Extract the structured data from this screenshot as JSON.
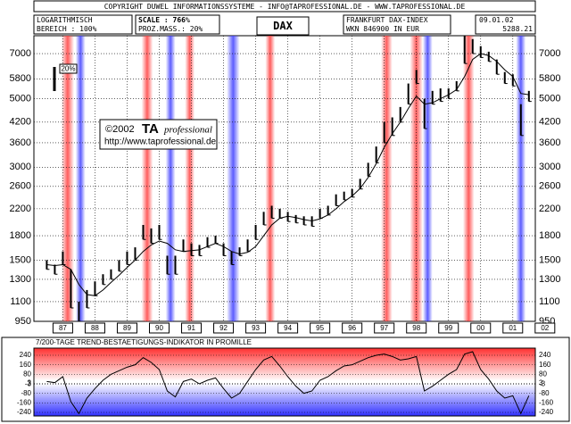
{
  "header": {
    "copyright": "COPYRIGHT DUWEL INFORMATIONSSYSTEME - INFO@TAPROFESSIONAL.DE - WWW.TAPROFESSIONAL.DE",
    "scale_type": "LOGARITHMISCH",
    "range": "BEREICH : 100%",
    "scale": "SCALE : 766%",
    "percent_measure": "PROZ.MASS.: 20%",
    "symbol": "DAX",
    "name": "FRANKFURT DAX-INDEX",
    "wkn": "WKN 846900 IN EUR",
    "date": "09.01.02",
    "last": "5288.21"
  },
  "chart_data": [
    {
      "type": "range-bar",
      "log_scale": true,
      "grid": true,
      "scale_marker": "20%",
      "watermark": {
        "year": "©2002",
        "brand": "TA",
        "brand_sub": "professional",
        "url": "http://www.taprofessional.de"
      },
      "x": [
        1987,
        1987.25,
        1987.5,
        1987.75,
        1988,
        1988.25,
        1988.5,
        1988.75,
        1989,
        1989.25,
        1989.5,
        1989.75,
        1990,
        1990.25,
        1990.5,
        1990.75,
        1991,
        1991.25,
        1991.5,
        1991.75,
        1992,
        1992.25,
        1992.5,
        1992.75,
        1993,
        1993.25,
        1993.5,
        1993.75,
        1994,
        1994.25,
        1994.5,
        1994.75,
        1995,
        1995.25,
        1995.5,
        1995.75,
        1996,
        1996.25,
        1996.5,
        1996.75,
        1997,
        1997.25,
        1997.5,
        1997.75,
        1998,
        1998.25,
        1998.5,
        1998.75,
        1999,
        1999.25,
        1999.5,
        1999.75,
        2000,
        2000.25,
        2000.5,
        2000.75,
        2001,
        2001.25,
        2001.5,
        2001.75,
        2002
      ],
      "series": [
        {
          "color": "#000000",
          "high": [
            1500,
            1450,
            1600,
            1400,
            1100,
            1200,
            1280,
            1350,
            1400,
            1500,
            1600,
            1650,
            1950,
            1900,
            1950,
            1550,
            1550,
            1750,
            1700,
            1680,
            1780,
            1800,
            1700,
            1600,
            1650,
            1750,
            1950,
            2150,
            2250,
            2200,
            2150,
            2100,
            2080,
            2080,
            2200,
            2250,
            2450,
            2500,
            2550,
            2750,
            3100,
            3500,
            4200,
            4350,
            4700,
            5600,
            6200,
            5000,
            5300,
            5400,
            5400,
            5700,
            8000,
            7800,
            7400,
            7100,
            6700,
            6100,
            6000,
            4800,
            5300
          ],
          "low": [
            1400,
            1350,
            1450,
            1050,
            950,
            1050,
            1150,
            1250,
            1300,
            1380,
            1450,
            1500,
            1750,
            1700,
            1750,
            1350,
            1350,
            1600,
            1550,
            1550,
            1650,
            1700,
            1550,
            1450,
            1550,
            1600,
            1750,
            1950,
            2050,
            2050,
            2000,
            1980,
            1950,
            1930,
            2050,
            2100,
            2250,
            2350,
            2400,
            2550,
            2800,
            3100,
            3600,
            3800,
            4200,
            4800,
            5600,
            4000,
            4800,
            4900,
            5000,
            5300,
            6500,
            7000,
            6800,
            6600,
            6000,
            5600,
            5500,
            3800,
            4900
          ]
        },
        {
          "color": "#000000",
          "values": [
            1450,
            1440,
            1450,
            1400,
            1250,
            1160,
            1150,
            1200,
            1270,
            1340,
            1420,
            1500,
            1600,
            1680,
            1730,
            1700,
            1620,
            1600,
            1610,
            1620,
            1660,
            1700,
            1660,
            1600,
            1570,
            1590,
            1660,
            1800,
            1950,
            2050,
            2080,
            2060,
            2030,
            2010,
            2040,
            2100,
            2200,
            2320,
            2420,
            2560,
            2780,
            3080,
            3480,
            3850,
            4200,
            4650,
            5100,
            4800,
            4850,
            5000,
            5150,
            5350,
            5900,
            6700,
            7000,
            6900,
            6600,
            6200,
            5900,
            5200,
            5150
          ]
        }
      ],
      "highlights": [
        {
          "x": [
            1987.45,
            1987.85
          ],
          "color": "#ff4040"
        },
        {
          "x": [
            1987.9,
            1988.2
          ],
          "color": "#4040ff"
        },
        {
          "x": [
            1989.95,
            1990.3
          ],
          "color": "#ff4040"
        },
        {
          "x": [
            1990.7,
            1991.0
          ],
          "color": "#4040ff"
        },
        {
          "x": [
            1991.3,
            1991.6
          ],
          "color": "#ff4040"
        },
        {
          "x": [
            1992.6,
            1993.0
          ],
          "color": "#4040ff"
        },
        {
          "x": [
            1993.8,
            1994.1
          ],
          "color": "#ff4040"
        },
        {
          "x": [
            1997.4,
            1997.75
          ],
          "color": "#ff4040"
        },
        {
          "x": [
            1998.3,
            1998.7
          ],
          "color": "#ff4040"
        },
        {
          "x": [
            1998.7,
            1999.0
          ],
          "color": "#4040ff"
        },
        {
          "x": [
            1999.95,
            2000.3
          ],
          "color": "#ff4040"
        },
        {
          "x": [
            2001.6,
            2001.9
          ],
          "color": "#4040ff"
        }
      ],
      "xlim": [
        1986.6,
        2002.2
      ],
      "xticks": [
        {
          "value": 1987.5,
          "label": "87"
        },
        {
          "value": 1988.5,
          "label": "88"
        },
        {
          "value": 1989.5,
          "label": "89"
        },
        {
          "value": 1990.5,
          "label": "90"
        },
        {
          "value": 1991.5,
          "label": "91"
        },
        {
          "value": 1992.5,
          "label": "92"
        },
        {
          "value": 1993.5,
          "label": "93"
        },
        {
          "value": 1994.5,
          "label": "94"
        },
        {
          "value": 1995.5,
          "label": "95"
        },
        {
          "value": 1996.5,
          "label": "96"
        },
        {
          "value": 1997.5,
          "label": "97"
        },
        {
          "value": 1998.5,
          "label": "98"
        },
        {
          "value": 1999.5,
          "label": "99"
        },
        {
          "value": 2000.5,
          "label": "00"
        },
        {
          "value": 2001.5,
          "label": "01"
        },
        {
          "value": 2002.5,
          "label": "02"
        }
      ],
      "ylim": [
        950,
        8000
      ],
      "yticks": [
        950,
        1100,
        1300,
        1500,
        1800,
        2200,
        2600,
        3000,
        3600,
        4200,
        5000,
        5800,
        7000
      ]
    },
    {
      "type": "line",
      "title": "7/200-TAGE TREND-BESTAETIGUNGS-INDIKATOR IN PROMILLE",
      "color": "#000000",
      "grid": true,
      "x": [
        1987,
        1987.25,
        1987.5,
        1987.75,
        1988,
        1988.25,
        1988.5,
        1988.75,
        1989,
        1989.25,
        1989.5,
        1989.75,
        1990,
        1990.25,
        1990.5,
        1990.75,
        1991,
        1991.25,
        1991.5,
        1991.75,
        1992,
        1992.25,
        1992.5,
        1992.75,
        1993,
        1993.25,
        1993.5,
        1993.75,
        1994,
        1994.25,
        1994.5,
        1994.75,
        1995,
        1995.25,
        1995.5,
        1995.75,
        1996,
        1996.25,
        1996.5,
        1996.75,
        1997,
        1997.25,
        1997.5,
        1997.75,
        1998,
        1998.25,
        1998.5,
        1998.75,
        1999,
        1999.25,
        1999.5,
        1999.75,
        2000,
        2000.25,
        2000.5,
        2000.75,
        2001,
        2001.25,
        2001.5,
        2001.75,
        2002
      ],
      "values": [
        20,
        10,
        60,
        -150,
        -250,
        -120,
        -40,
        30,
        80,
        110,
        140,
        160,
        220,
        180,
        120,
        -60,
        -110,
        20,
        40,
        0,
        30,
        50,
        -40,
        -120,
        -80,
        20,
        120,
        200,
        230,
        150,
        60,
        -20,
        -80,
        -60,
        30,
        60,
        110,
        150,
        160,
        190,
        220,
        240,
        250,
        230,
        200,
        210,
        230,
        -60,
        -20,
        30,
        80,
        120,
        250,
        270,
        120,
        40,
        -60,
        -120,
        -100,
        -250,
        -100
      ],
      "xlim": [
        1986.6,
        2002.2
      ],
      "ylim": [
        -270,
        300
      ],
      "yticks": [
        240,
        160,
        80,
        3,
        -3,
        -80,
        -160,
        -240
      ]
    }
  ]
}
